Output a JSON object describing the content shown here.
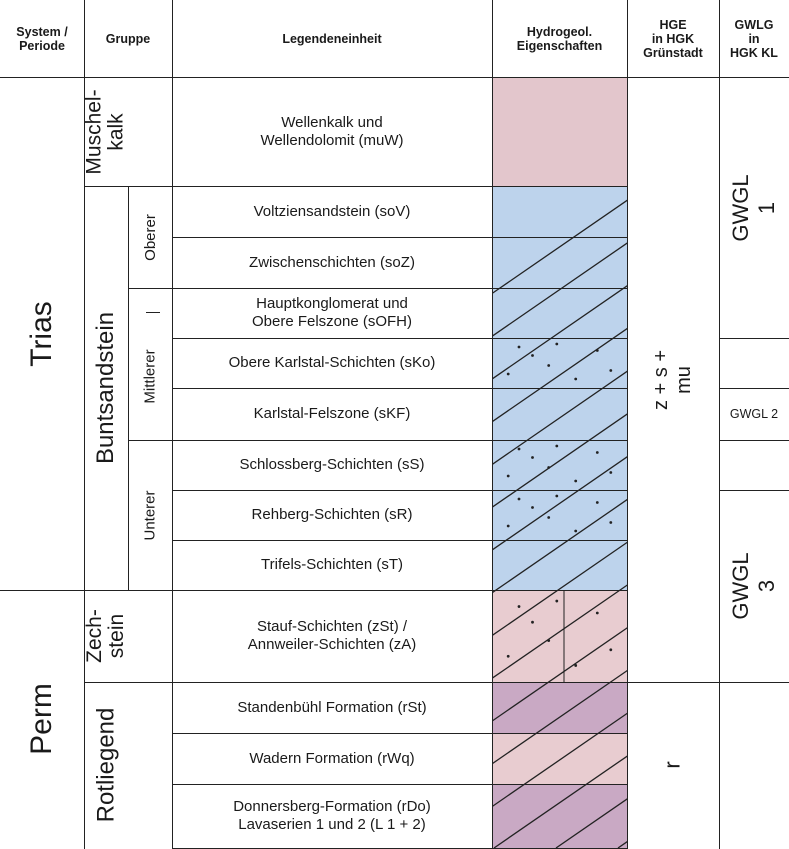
{
  "headers": {
    "system": "System /\nPeriode",
    "gruppe": "Gruppe",
    "legend": "Legendeneinheit",
    "hydro": "Hydrogeol.\nEigenschaften",
    "hge": "HGE\nin HGK\nGrünstadt",
    "gwlg": "GWLG\nin\nHGK KL"
  },
  "systems": {
    "trias": "Trias",
    "perm": "Perm"
  },
  "groups": {
    "muschelkalk": "Muschel-\nkalk",
    "buntsandstein": "Buntsandstein",
    "zechstein": "Zech-\nstein",
    "rotliegend": "Rotliegend"
  },
  "subgroups": {
    "oberer": "Oberer",
    "mittlerer": "Mittlerer",
    "unterer": "Unterer"
  },
  "units": [
    {
      "label": "Wellenkalk und\nWellendolomit (muW)",
      "color": "#e3c6cc",
      "dots": false
    },
    {
      "label": "Voltziensandstein (soV)",
      "color": "#bdd3ec",
      "dots": false
    },
    {
      "label": "Zwischenschichten (soZ)",
      "color": "#bdd3ec",
      "dots": false
    },
    {
      "label": "Hauptkonglomerat und\nObere Felszone (sOFH)",
      "color": "#bdd3ec",
      "dots": false
    },
    {
      "label": "Obere Karlstal-Schichten (sKo)",
      "color": "#bdd3ec",
      "dots": true
    },
    {
      "label": "Karlstal-Felszone (sKF)",
      "color": "#bdd3ec",
      "dots": false
    },
    {
      "label": "Schlossberg-Schichten (sS)",
      "color": "#bdd3ec",
      "dots": true
    },
    {
      "label": "Rehberg-Schichten (sR)",
      "color": "#bdd3ec",
      "dots": true
    },
    {
      "label": "Trifels-Schichten (sT)",
      "color": "#bdd3ec",
      "dots": false
    },
    {
      "label": "Stauf-Schichten (zSt) /\nAnnweiler-Schichten (zA)",
      "color": "#e8ccd0",
      "dots": true
    },
    {
      "label": "Standenbühl Formation (rSt)",
      "color": "#c9a9c4",
      "dots": false
    },
    {
      "label": "Wadern Formation (rWq)",
      "color": "#e8ccd0",
      "dots": false
    },
    {
      "label": "Donnersberg-Formation (rDo)\nLavaserien 1 und 2 (L 1 + 2)",
      "color": "#c9a9c4",
      "dots": false
    }
  ],
  "hge": {
    "upper": "z + s + mu",
    "lower": "r"
  },
  "gwlg": {
    "gwgl1": "GWGL 1",
    "gwgl2": "GWGL 2",
    "gwgl3": "GWGL 3"
  }
}
